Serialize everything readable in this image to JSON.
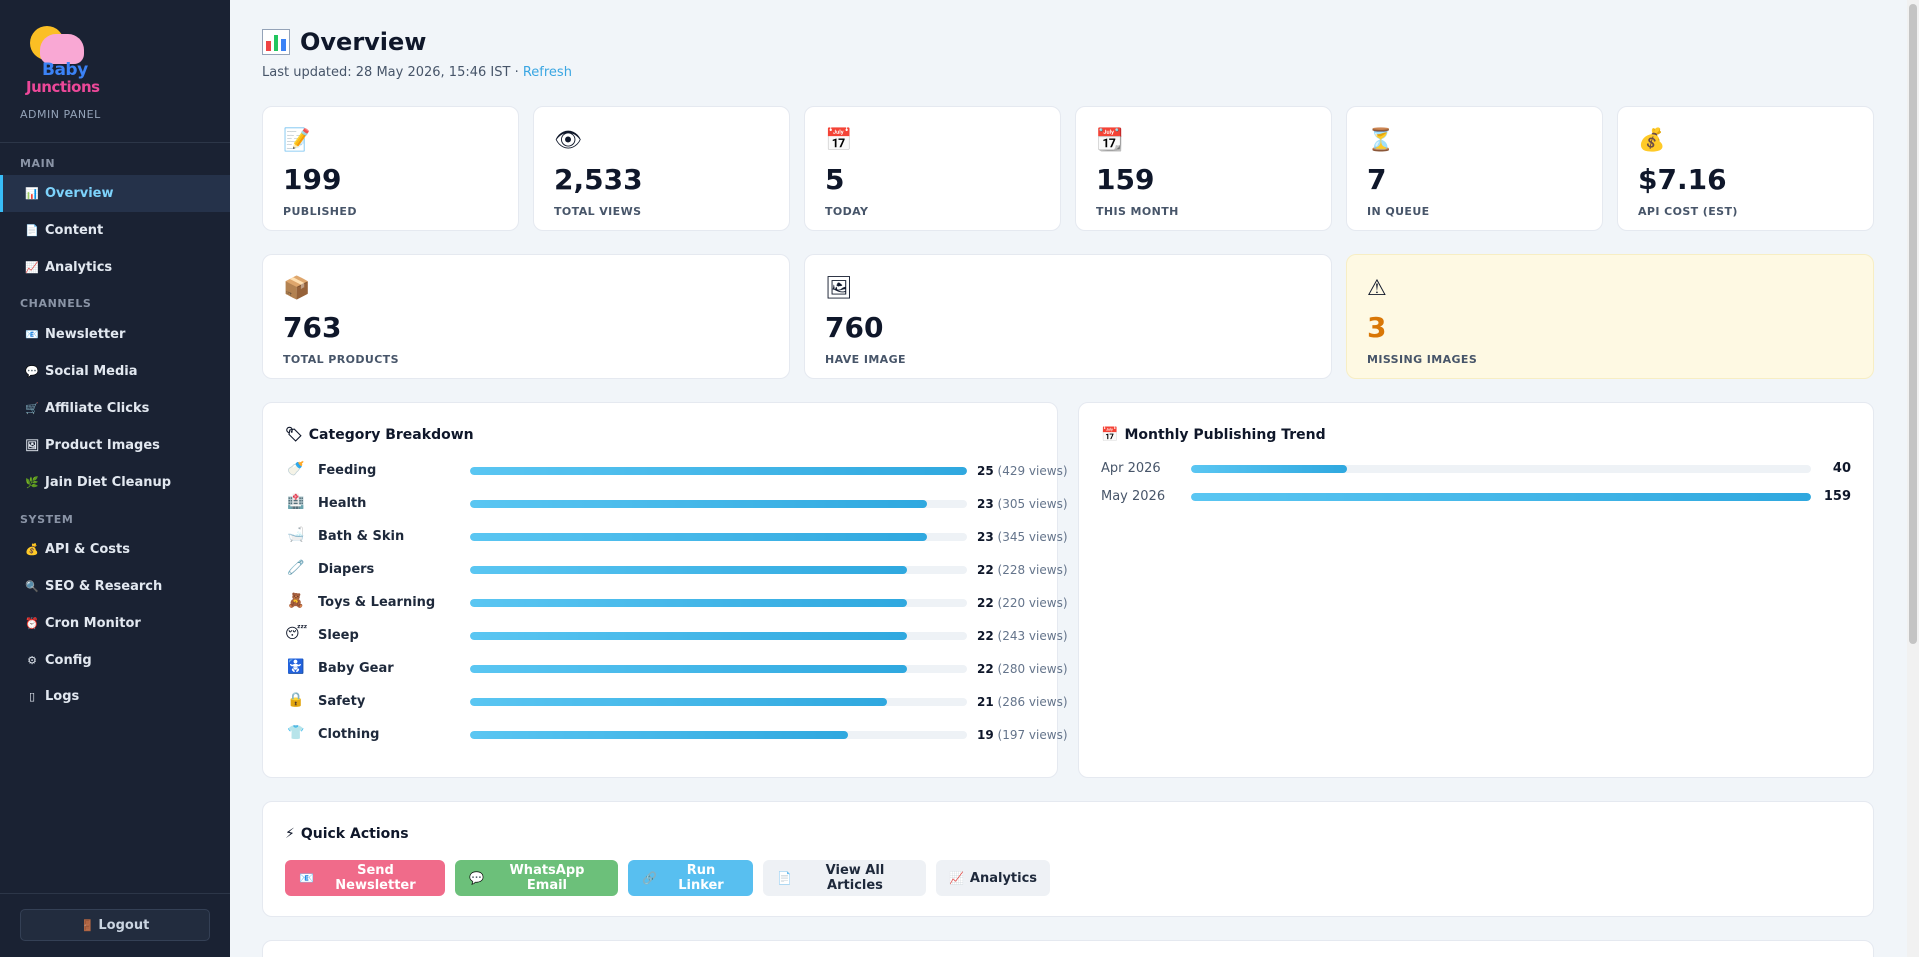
{
  "sidebar": {
    "logo_line1": "Baby",
    "logo_line2": "Junctions",
    "admin_label": "ADMIN PANEL",
    "sections": {
      "main": "MAIN",
      "channels": "CHANNELS",
      "system": "SYSTEM"
    },
    "items": [
      {
        "label": "Overview",
        "icon": "chart-icon"
      },
      {
        "label": "Content",
        "icon": "document-icon"
      },
      {
        "label": "Analytics",
        "icon": "trend-icon"
      },
      {
        "label": "Newsletter",
        "icon": "mail-icon"
      },
      {
        "label": "Social Media",
        "icon": "chat-icon"
      },
      {
        "label": "Affiliate Clicks",
        "icon": "cart-icon"
      },
      {
        "label": "Product Images",
        "icon": "image-icon"
      },
      {
        "label": "Jain Diet Cleanup",
        "icon": "leaf-icon"
      },
      {
        "label": "API & Costs",
        "icon": "money-icon"
      },
      {
        "label": "SEO & Research",
        "icon": "search-icon"
      },
      {
        "label": "Cron Monitor",
        "icon": "alarm-icon"
      },
      {
        "label": "Config",
        "icon": "gear-icon"
      },
      {
        "label": "Logs",
        "icon": "log-icon"
      }
    ],
    "logout_label": "Logout"
  },
  "header": {
    "title": "Overview",
    "last_updated": "Last updated: 28 May 2026, 15:46 IST · ",
    "refresh_label": "Refresh"
  },
  "stats": [
    {
      "value": "199",
      "label": "PUBLISHED",
      "icon": "memo-icon"
    },
    {
      "value": "2,533",
      "label": "TOTAL VIEWS",
      "icon": "eye-icon"
    },
    {
      "value": "5",
      "label": "TODAY",
      "icon": "calendar-icon"
    },
    {
      "value": "159",
      "label": "THIS MONTH",
      "icon": "calendar-31-icon"
    },
    {
      "value": "7",
      "label": "IN QUEUE",
      "icon": "hourglass-icon"
    },
    {
      "value": "$7.16",
      "label": "API COST (EST)",
      "icon": "money-bag-icon"
    }
  ],
  "products": [
    {
      "value": "763",
      "label": "TOTAL PRODUCTS",
      "icon": "box-icon"
    },
    {
      "value": "760",
      "label": "HAVE IMAGE",
      "icon": "picture-icon"
    },
    {
      "value": "3",
      "label": "MISSING IMAGES",
      "icon": "warning-icon"
    }
  ],
  "category_panel": {
    "title": "Category Breakdown",
    "max": 25,
    "rows": [
      {
        "name": "Feeding",
        "count": "25",
        "views": "(429 views)",
        "value": 25,
        "icon": "bottle-icon"
      },
      {
        "name": "Health",
        "count": "23",
        "views": "(305 views)",
        "value": 23,
        "icon": "hospital-icon"
      },
      {
        "name": "Bath & Skin",
        "count": "23",
        "views": "(345 views)",
        "value": 23,
        "icon": "bathtub-icon"
      },
      {
        "name": "Diapers",
        "count": "22",
        "views": "(228 views)",
        "value": 22,
        "icon": "safety-pin-icon"
      },
      {
        "name": "Toys & Learning",
        "count": "22",
        "views": "(220 views)",
        "value": 22,
        "icon": "teddy-bear-icon"
      },
      {
        "name": "Sleep",
        "count": "22",
        "views": "(243 views)",
        "value": 22,
        "icon": "sleepy-face-icon"
      },
      {
        "name": "Baby Gear",
        "count": "22",
        "views": "(280 views)",
        "value": 22,
        "icon": "stroller-icon"
      },
      {
        "name": "Safety",
        "count": "21",
        "views": "(286 views)",
        "value": 21,
        "icon": "lock-icon"
      },
      {
        "name": "Clothing",
        "count": "19",
        "views": "(197 views)",
        "value": 19,
        "icon": "shirt-icon"
      }
    ]
  },
  "trend_panel": {
    "title": "Monthly Publishing Trend",
    "max": 159,
    "rows": [
      {
        "month": "Apr 2026",
        "value": 40,
        "label": "40"
      },
      {
        "month": "May 2026",
        "value": 159,
        "label": "159"
      }
    ]
  },
  "quick_actions": {
    "title": "Quick Actions",
    "buttons": [
      {
        "label": "Send Newsletter",
        "color": "#f06b8a"
      },
      {
        "label": "WhatsApp Email",
        "color": "#6cc07a"
      },
      {
        "label": "Run Linker",
        "color": "#58bff0"
      },
      {
        "label": "View All Articles",
        "color": "#eef1f5"
      },
      {
        "label": "Analytics",
        "color": "#eef1f5"
      }
    ]
  }
}
